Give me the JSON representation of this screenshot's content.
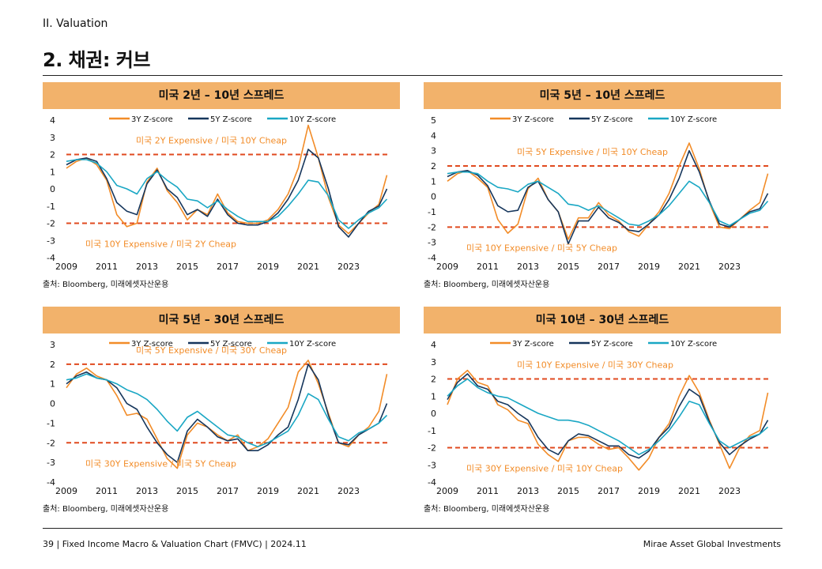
{
  "page": {
    "section": "II. Valuation",
    "title": "2. 채권: 커브",
    "footer_left": "39 | Fixed Income Macro & Valuation Chart (FMVC) | 2024.11",
    "footer_right": "Mirae Asset Global Investments"
  },
  "colors": {
    "3y": "#f28c28",
    "5y": "#16365c",
    "10y": "#1aa7c4",
    "threshold": "#e04a1f",
    "header_bg": "#f2b26b"
  },
  "panels": [
    {
      "header": "미국 2년 – 10년 스프레드",
      "source": "출처: Bloomberg, 미래에셋자산운용",
      "chart_data": {
        "type": "line",
        "ylim": [
          -4,
          4
        ],
        "yticks": [
          4,
          3,
          2,
          1,
          0,
          -1,
          -2,
          -3,
          -4
        ],
        "xlim": [
          2009,
          2025
        ],
        "xticks": [
          "2009",
          "2011",
          "2013",
          "2015",
          "2017",
          "2019",
          "2021",
          "2023"
        ],
        "thresholds": [
          2,
          -2
        ],
        "annotation_top": "미국 2Y Expensive / 미국 10Y Cheap",
        "annotation_bottom": "미국 10Y Expensive / 미국 2Y Cheap",
        "x": [
          2009,
          2009.5,
          2010,
          2010.5,
          2011,
          2011.5,
          2012,
          2012.5,
          2013,
          2013.5,
          2014,
          2014.5,
          2015,
          2015.5,
          2016,
          2016.5,
          2017,
          2017.5,
          2018,
          2018.5,
          2019,
          2019.5,
          2020,
          2020.5,
          2021,
          2021.5,
          2022,
          2022.5,
          2023,
          2023.5,
          2024,
          2024.5,
          2024.9
        ],
        "series": [
          {
            "name": "3Y Z-score",
            "values": [
              1.2,
              1.6,
              1.8,
              1.4,
              0.5,
              -1.5,
              -2.2,
              -2.0,
              0.4,
              1.2,
              -0.1,
              -0.8,
              -1.8,
              -1.2,
              -1.5,
              -0.3,
              -1.4,
              -1.9,
              -2.0,
              -2.0,
              -1.8,
              -1.2,
              -0.3,
              1.2,
              3.7,
              1.8,
              -0.5,
              -2.1,
              -2.6,
              -2.0,
              -1.4,
              -0.9,
              0.8
            ]
          },
          {
            "name": "5Y Z-score",
            "values": [
              1.4,
              1.7,
              1.8,
              1.6,
              0.6,
              -0.8,
              -1.3,
              -1.5,
              0.3,
              1.1,
              0.0,
              -0.5,
              -1.5,
              -1.2,
              -1.6,
              -0.6,
              -1.5,
              -2.0,
              -2.1,
              -2.1,
              -1.9,
              -1.4,
              -0.6,
              0.5,
              2.3,
              1.8,
              0.0,
              -2.2,
              -2.8,
              -2.0,
              -1.3,
              -1.0,
              0.0
            ]
          },
          {
            "name": "10Y Z-score",
            "values": [
              1.6,
              1.7,
              1.7,
              1.5,
              1.0,
              0.2,
              0.0,
              -0.3,
              0.6,
              1.0,
              0.5,
              0.1,
              -0.6,
              -0.7,
              -1.1,
              -0.7,
              -1.2,
              -1.6,
              -1.9,
              -1.9,
              -1.9,
              -1.6,
              -1.0,
              -0.3,
              0.5,
              0.4,
              -0.4,
              -1.8,
              -2.3,
              -1.8,
              -1.4,
              -1.1,
              -0.6
            ]
          }
        ]
      }
    },
    {
      "header": "미국 5년 – 10년 스프레드",
      "source": "출처: Bloomberg, 미래에셋자산운용",
      "chart_data": {
        "type": "line",
        "ylim": [
          -4,
          5
        ],
        "yticks": [
          5,
          4,
          3,
          2,
          1,
          0,
          -1,
          -2,
          -3,
          -4
        ],
        "xlim": [
          2009,
          2025
        ],
        "xticks": [
          "2009",
          "2011",
          "2013",
          "2015",
          "2017",
          "2019",
          "2021",
          "2023"
        ],
        "thresholds": [
          2,
          -2
        ],
        "annotation_top": "미국 5Y Expensive / 미국 10Y Cheap",
        "annotation_bottom": "미국 10Y Expensive / 미국 5Y Cheap",
        "x": [
          2009,
          2009.5,
          2010,
          2010.5,
          2011,
          2011.5,
          2012,
          2012.5,
          2013,
          2013.5,
          2014,
          2014.5,
          2015,
          2015.5,
          2016,
          2016.5,
          2017,
          2017.5,
          2018,
          2018.5,
          2019,
          2019.5,
          2020,
          2020.5,
          2021,
          2021.5,
          2022,
          2022.5,
          2023,
          2023.5,
          2024,
          2024.5,
          2024.9
        ],
        "series": [
          {
            "name": "3Y Z-score",
            "values": [
              1.0,
              1.5,
              1.7,
              1.2,
              0.6,
              -1.5,
              -2.4,
              -1.8,
              0.5,
              1.2,
              -0.2,
              -1.0,
              -2.8,
              -1.4,
              -1.4,
              -0.4,
              -1.2,
              -1.6,
              -2.3,
              -2.6,
              -1.8,
              -1.0,
              0.2,
              2.0,
              3.5,
              1.8,
              -0.4,
              -2.0,
              -2.1,
              -1.5,
              -0.9,
              -0.4,
              1.5
            ]
          },
          {
            "name": "5Y Z-score",
            "values": [
              1.3,
              1.6,
              1.7,
              1.4,
              0.7,
              -0.6,
              -1.0,
              -0.9,
              0.6,
              1.0,
              -0.2,
              -1.0,
              -3.1,
              -1.6,
              -1.6,
              -0.7,
              -1.4,
              -1.7,
              -2.2,
              -2.3,
              -1.8,
              -1.2,
              -0.2,
              1.2,
              3.0,
              1.6,
              -0.3,
              -1.8,
              -2.0,
              -1.5,
              -1.0,
              -0.8,
              0.2
            ]
          },
          {
            "name": "10Y Z-score",
            "values": [
              1.5,
              1.6,
              1.6,
              1.5,
              1.0,
              0.6,
              0.5,
              0.3,
              0.8,
              1.0,
              0.6,
              0.2,
              -0.5,
              -0.6,
              -0.9,
              -0.6,
              -1.0,
              -1.4,
              -1.8,
              -1.9,
              -1.6,
              -1.2,
              -0.6,
              0.2,
              1.0,
              0.6,
              -0.4,
              -1.6,
              -1.9,
              -1.5,
              -1.1,
              -0.9,
              -0.3
            ]
          }
        ]
      }
    },
    {
      "header": "미국 5년 – 30년 스프레드",
      "source": "출처: Bloomberg, 미래에셋자산운용",
      "chart_data": {
        "type": "line",
        "ylim": [
          -4,
          3
        ],
        "yticks": [
          3,
          2,
          1,
          0,
          -1,
          -2,
          -3,
          -4
        ],
        "xlim": [
          2009,
          2025
        ],
        "xticks": [
          "2009",
          "2011",
          "2013",
          "2015",
          "2017",
          "2019",
          "2021",
          "2023"
        ],
        "thresholds": [
          2,
          -2
        ],
        "annotation_top": "미국 5Y Expensive / 미국 30Y Cheap",
        "annotation_bottom": "미국 30Y Expensive / 미국 5Y Cheap",
        "x": [
          2009,
          2009.5,
          2010,
          2010.5,
          2011,
          2011.5,
          2012,
          2012.5,
          2013,
          2013.5,
          2014,
          2014.5,
          2015,
          2015.5,
          2016,
          2016.5,
          2017,
          2017.5,
          2018,
          2018.5,
          2019,
          2019.5,
          2020,
          2020.5,
          2021,
          2021.5,
          2022,
          2022.5,
          2023,
          2023.5,
          2024,
          2024.5,
          2024.9
        ],
        "series": [
          {
            "name": "3Y Z-score",
            "values": [
              0.8,
              1.5,
              1.8,
              1.4,
              1.2,
              0.4,
              -0.6,
              -0.5,
              -0.8,
              -1.8,
              -2.8,
              -3.3,
              -1.6,
              -1.0,
              -1.2,
              -1.6,
              -1.9,
              -1.6,
              -2.4,
              -2.2,
              -1.8,
              -1.0,
              -0.2,
              1.6,
              2.2,
              1.0,
              -0.5,
              -2.0,
              -2.2,
              -1.6,
              -1.2,
              -0.4,
              1.5
            ]
          },
          {
            "name": "5Y Z-score",
            "values": [
              1.0,
              1.4,
              1.6,
              1.3,
              1.2,
              0.8,
              0.0,
              -0.3,
              -1.2,
              -2.0,
              -2.6,
              -3.0,
              -1.4,
              -0.8,
              -1.2,
              -1.7,
              -1.9,
              -1.8,
              -2.4,
              -2.4,
              -2.1,
              -1.6,
              -1.2,
              0.2,
              2.0,
              1.2,
              -0.6,
              -2.0,
              -2.1,
              -1.6,
              -1.3,
              -1.0,
              0.0
            ]
          },
          {
            "name": "10Y Z-score",
            "values": [
              1.2,
              1.3,
              1.5,
              1.3,
              1.2,
              1.0,
              0.7,
              0.5,
              0.2,
              -0.3,
              -0.9,
              -1.4,
              -0.7,
              -0.4,
              -0.8,
              -1.2,
              -1.6,
              -1.7,
              -2.0,
              -2.2,
              -2.0,
              -1.7,
              -1.4,
              -0.6,
              0.5,
              0.2,
              -0.8,
              -1.7,
              -1.9,
              -1.5,
              -1.3,
              -1.0,
              -0.6
            ]
          }
        ]
      }
    },
    {
      "header": "미국 10년 – 30년 스프레드",
      "source": "출처: Bloomberg, 미래에셋자산운용",
      "chart_data": {
        "type": "line",
        "ylim": [
          -4,
          4
        ],
        "yticks": [
          4,
          3,
          2,
          1,
          0,
          -1,
          -2,
          -3,
          -4
        ],
        "xlim": [
          2009,
          2025
        ],
        "xticks": [
          "2009",
          "2011",
          "2013",
          "2015",
          "2017",
          "2019",
          "2021",
          "2023"
        ],
        "thresholds": [
          2,
          -2
        ],
        "annotation_top": "미국 10Y Expensive / 미국 30Y Cheap",
        "annotation_bottom": "미국 30Y Expensive / 미국 10Y Cheap",
        "x": [
          2009,
          2009.5,
          2010,
          2010.5,
          2011,
          2011.5,
          2012,
          2012.5,
          2013,
          2013.5,
          2014,
          2014.5,
          2015,
          2015.5,
          2016,
          2016.5,
          2017,
          2017.5,
          2018,
          2018.5,
          2019,
          2019.5,
          2020,
          2020.5,
          2021,
          2021.5,
          2022,
          2022.5,
          2023,
          2023.5,
          2024,
          2024.5,
          2024.9
        ],
        "series": [
          {
            "name": "3Y Z-score",
            "values": [
              0.5,
              2.0,
              2.5,
              1.8,
              1.6,
              0.5,
              0.2,
              -0.4,
              -0.6,
              -1.8,
              -2.4,
              -2.8,
              -1.6,
              -1.4,
              -1.4,
              -1.8,
              -2.1,
              -2.0,
              -2.6,
              -3.3,
              -2.6,
              -1.4,
              -0.6,
              1.0,
              2.2,
              1.2,
              -0.4,
              -1.8,
              -3.2,
              -2.0,
              -1.3,
              -1.0,
              1.2
            ]
          },
          {
            "name": "5Y Z-score",
            "values": [
              0.8,
              1.8,
              2.3,
              1.6,
              1.4,
              0.7,
              0.5,
              0.0,
              -0.4,
              -1.4,
              -2.1,
              -2.4,
              -1.6,
              -1.2,
              -1.3,
              -1.6,
              -1.9,
              -1.9,
              -2.4,
              -2.6,
              -2.2,
              -1.4,
              -0.8,
              0.4,
              1.4,
              1.0,
              -0.5,
              -1.7,
              -2.4,
              -1.9,
              -1.5,
              -1.2,
              -0.4
            ]
          },
          {
            "name": "10Y Z-score",
            "values": [
              1.0,
              1.6,
              2.0,
              1.5,
              1.2,
              1.0,
              0.9,
              0.6,
              0.3,
              0.0,
              -0.2,
              -0.4,
              -0.4,
              -0.5,
              -0.7,
              -1.0,
              -1.3,
              -1.6,
              -2.0,
              -2.4,
              -2.1,
              -1.6,
              -1.0,
              -0.2,
              0.7,
              0.5,
              -0.6,
              -1.6,
              -2.0,
              -1.7,
              -1.4,
              -1.2,
              -0.8
            ]
          }
        ]
      }
    }
  ]
}
